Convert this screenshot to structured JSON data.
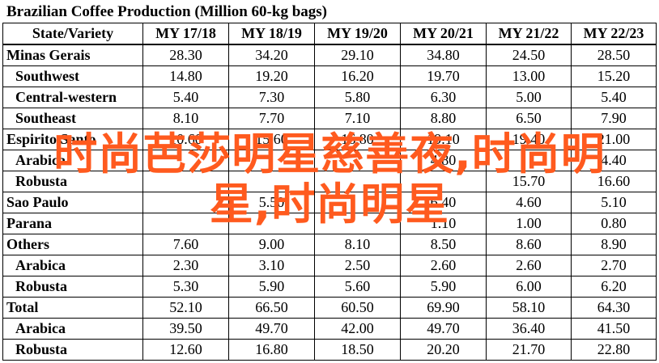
{
  "title": "Brazilian Coffee Production (Million 60-kg bags)",
  "columns": [
    "State/Variety",
    "MY 17/18",
    "MY 18/19",
    "MY 19/20",
    "MY 20/21",
    "MY 21/22",
    "MY 22/23"
  ],
  "rows": [
    {
      "label": "Minas Gerais",
      "sub": false,
      "values": [
        "28.30",
        "34.20",
        "29.10",
        "34.80",
        "24.50",
        "28.50"
      ]
    },
    {
      "label": "Southwest",
      "sub": true,
      "values": [
        "14.80",
        "19.20",
        "16.20",
        "19.70",
        "13.00",
        "15.20"
      ]
    },
    {
      "label": "Central-western",
      "sub": true,
      "values": [
        "5.40",
        "7.30",
        "5.80",
        "6.30",
        "5.00",
        "5.40"
      ]
    },
    {
      "label": "Southeast",
      "sub": true,
      "values": [
        "8.10",
        "7.70",
        "7.10",
        "8.80",
        "6.50",
        "7.90"
      ]
    },
    {
      "label": "Espirito Santo",
      "sub": false,
      "values": [
        "10.60",
        "15.60",
        "16.80",
        "19.10",
        "19.40",
        "21.00"
      ]
    },
    {
      "label": "Arabica",
      "sub": true,
      "values": [
        "",
        "",
        "",
        "4.80",
        "",
        "4.40"
      ]
    },
    {
      "label": "Robusta",
      "sub": true,
      "values": [
        "",
        "",
        "",
        "",
        "15.70",
        "16.60"
      ]
    },
    {
      "label": "Sao Paulo",
      "sub": false,
      "values": [
        "",
        "5.50",
        "",
        "6.40",
        "4.60",
        "5.10"
      ]
    },
    {
      "label": "Parana",
      "sub": false,
      "values": [
        "",
        "",
        "",
        "1.10",
        "1.00",
        "0.80"
      ]
    },
    {
      "label": "Others",
      "sub": false,
      "values": [
        "7.60",
        "9.00",
        "8.10",
        "8.50",
        "8.60",
        "8.90"
      ]
    },
    {
      "label": "Arabica",
      "sub": true,
      "values": [
        "2.30",
        "3.10",
        "2.50",
        "2.60",
        "2.60",
        "2.70"
      ]
    },
    {
      "label": "Robusta",
      "sub": true,
      "values": [
        "5.30",
        "5.90",
        "5.60",
        "5.90",
        "6.00",
        "6.20"
      ]
    },
    {
      "label": "Total",
      "sub": false,
      "values": [
        "52.10",
        "66.50",
        "60.50",
        "69.90",
        "58.10",
        "64.30"
      ]
    },
    {
      "label": "Arabica",
      "sub": true,
      "values": [
        "39.50",
        "49.70",
        "42.00",
        "49.70",
        "36.40",
        "41.50"
      ]
    },
    {
      "label": "Robusta",
      "sub": true,
      "values": [
        "12.60",
        "16.80",
        "18.50",
        "20.20",
        "21.70",
        "22.80"
      ]
    }
  ],
  "watermark": {
    "line1": "时尚芭莎明星慈善夜,时尚明",
    "line2": "星,时尚明星",
    "color": "#ff5a1e"
  }
}
